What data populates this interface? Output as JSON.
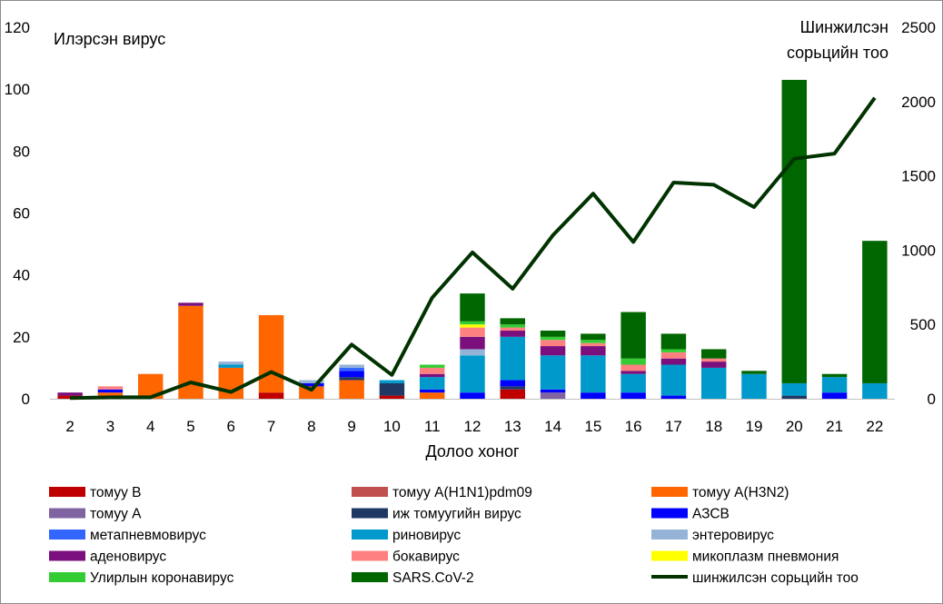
{
  "chart_data": {
    "type": "bar",
    "stacked": true,
    "categories": [
      "2",
      "3",
      "4",
      "5",
      "6",
      "7",
      "8",
      "9",
      "10",
      "11",
      "12",
      "13",
      "14",
      "15",
      "16",
      "17",
      "18",
      "19",
      "20",
      "21",
      "22"
    ],
    "xlabel": "Долоо хоног",
    "ylabel_left": "Илэрсэн вирус",
    "ylabel_right_line1": "Шинжилсэн",
    "ylabel_right_line2": "сорьцийн тоо",
    "ylim_left": [
      0,
      120
    ],
    "yticks_left": [
      "0",
      "20",
      "40",
      "60",
      "80",
      "100",
      "120"
    ],
    "ylim_right": [
      0,
      2500
    ],
    "yticks_right": [
      "0",
      "500",
      "1000",
      "1500",
      "2000",
      "2500"
    ],
    "grid": false,
    "legend_position": "bottom",
    "series": [
      {
        "name": "томуу B",
        "color": "#c00000",
        "values": [
          1,
          0,
          0,
          0,
          0,
          2,
          0,
          0,
          1,
          0,
          0,
          3,
          0,
          0,
          0,
          0,
          0,
          0,
          0,
          0,
          0
        ]
      },
      {
        "name": "томуу A(H1N1)pdm09",
        "color": "#c0504d",
        "values": [
          0,
          0,
          0,
          0,
          0,
          0,
          0,
          0,
          0,
          0,
          0,
          0,
          0,
          0,
          0,
          0,
          0,
          0,
          0,
          0,
          0
        ]
      },
      {
        "name": "томуу A(H3N2)",
        "color": "#ff6600",
        "values": [
          0,
          2,
          8,
          30,
          10,
          25,
          4,
          6,
          0,
          2,
          0,
          0,
          0,
          0,
          0,
          0,
          0,
          0,
          0,
          0,
          0
        ]
      },
      {
        "name": "томуу А",
        "color": "#8064a2",
        "values": [
          0,
          0,
          0,
          0,
          0,
          0,
          0,
          0,
          0,
          0,
          0,
          0,
          2,
          0,
          0,
          0,
          0,
          0,
          0,
          0,
          0
        ]
      },
      {
        "name": "иж томуугийн вирус",
        "color": "#1f3864",
        "values": [
          0,
          0,
          0,
          0,
          0,
          0,
          0,
          1,
          4,
          0,
          0,
          1,
          0,
          0,
          0,
          0,
          0,
          0,
          1,
          0,
          0
        ]
      },
      {
        "name": "АЗСВ",
        "color": "#0000ff",
        "values": [
          0,
          1,
          0,
          0,
          0,
          0,
          1,
          2,
          0,
          1,
          2,
          2,
          1,
          2,
          2,
          1,
          0,
          0,
          0,
          2,
          0
        ]
      },
      {
        "name": "метапневмовирус",
        "color": "#3366ff",
        "values": [
          0,
          0,
          0,
          0,
          0,
          0,
          0,
          1,
          0,
          0,
          0,
          0,
          0,
          0,
          0,
          0,
          0,
          0,
          0,
          0,
          0
        ]
      },
      {
        "name": "риновирус",
        "color": "#0099cc",
        "values": [
          0,
          0,
          0,
          0,
          1,
          0,
          0,
          0,
          1,
          4,
          12,
          14,
          11,
          12,
          6,
          10,
          10,
          8,
          4,
          5,
          5
        ]
      },
      {
        "name": "энтеровирус",
        "color": "#95b3d7",
        "values": [
          0,
          0,
          0,
          0,
          1,
          0,
          1,
          1,
          0,
          0,
          2,
          0,
          0,
          0,
          0,
          0,
          0,
          0,
          0,
          0,
          0
        ]
      },
      {
        "name": "аденовирус",
        "color": "#7b0f7d",
        "values": [
          1,
          0,
          0,
          1,
          0,
          0,
          0,
          0,
          0,
          1,
          4,
          2,
          3,
          3,
          1,
          2,
          2,
          0,
          0,
          0,
          0
        ]
      },
      {
        "name": "бокавирус",
        "color": "#ff8080",
        "values": [
          0,
          1,
          0,
          0,
          0,
          0,
          0,
          0,
          0,
          2,
          3,
          1,
          2,
          1,
          2,
          2,
          1,
          0,
          0,
          0,
          0
        ]
      },
      {
        "name": "микоплазм пневмония",
        "color": "#ffff00",
        "values": [
          0,
          0,
          0,
          0,
          0,
          0,
          0,
          0,
          0,
          0,
          1,
          0,
          0,
          0,
          0,
          0,
          0,
          0,
          0,
          0,
          0
        ]
      },
      {
        "name": "Улирлын коронавирус",
        "color": "#33cc33",
        "values": [
          0,
          0,
          0,
          0,
          0,
          0,
          0,
          0,
          0,
          1,
          1,
          1,
          1,
          1,
          2,
          1,
          0,
          0,
          0,
          0,
          0
        ]
      },
      {
        "name": "SARS.CoV-2",
        "color": "#006600",
        "values": [
          0,
          0,
          0,
          0,
          0,
          0,
          0,
          0,
          0,
          0,
          9,
          2,
          2,
          2,
          15,
          5,
          3,
          1,
          98,
          1,
          46
        ]
      }
    ],
    "line_series": {
      "name": "шинжилсэн сорьцийн тоо",
      "color": "#003300",
      "axis": "right",
      "values": [
        5,
        10,
        10,
        110,
        45,
        180,
        60,
        365,
        160,
        680,
        985,
        740,
        1100,
        1380,
        1055,
        1455,
        1440,
        1290,
        1615,
        1650,
        2025
      ]
    }
  }
}
